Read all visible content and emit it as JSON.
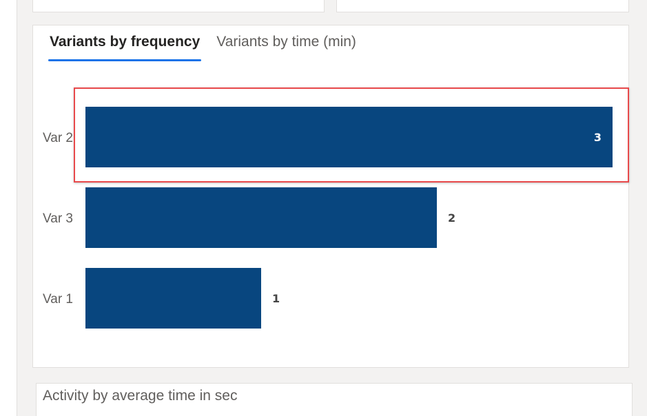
{
  "tabs": [
    {
      "label": "Variants by frequency",
      "active": true
    },
    {
      "label": "Variants by time (min)",
      "active": false
    }
  ],
  "bottom_card": {
    "title": "Activity by average time in sec"
  },
  "colors": {
    "bar": "#08467f",
    "highlight": "#e8494b",
    "tab_underline": "#1a73e8"
  },
  "chart_data": {
    "type": "bar",
    "orientation": "horizontal",
    "categories": [
      "Var 2",
      "Var 3",
      "Var 1"
    ],
    "values": [
      3,
      2,
      1
    ],
    "xlim": [
      0,
      3
    ],
    "title": "",
    "xlabel": "",
    "ylabel": "",
    "grid": false,
    "highlighted_category": "Var 2"
  }
}
